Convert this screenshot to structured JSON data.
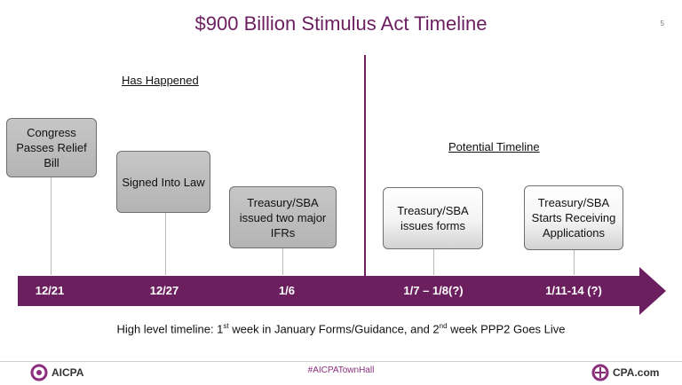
{
  "title": "$900 Billion Stimulus Act Timeline",
  "page_number": "5",
  "sections": {
    "past": "Has Happened",
    "future": "Potential Timeline"
  },
  "milestones": [
    {
      "label": "Congress Passes Relief Bill",
      "date": "12/21"
    },
    {
      "label": "Signed Into Law",
      "date": "12/27"
    },
    {
      "label": "Treasury/SBA issued two major IFRs",
      "date": "1/6"
    },
    {
      "label": "Treasury/SBA issues forms",
      "date": "1/7 – 1/8(?)"
    },
    {
      "label": "Treasury/SBA Starts Receiving Applications",
      "date": "1/11-14 (?)"
    }
  ],
  "footnote": {
    "part1": "High level timeline: 1",
    "sup1": "st",
    "part2": " week in January Forms/Guidance, and 2",
    "sup2": "nd",
    "part3": " week PPP2 Goes Live"
  },
  "footer": {
    "left_logo": "AICPA",
    "hashtag": "#AICPATownHall",
    "right_logo": "CPA.com"
  },
  "colors": {
    "brand_purple": "#6b1f5f",
    "past_box": "#bdbdbd",
    "future_box": "#f2f2f2"
  }
}
